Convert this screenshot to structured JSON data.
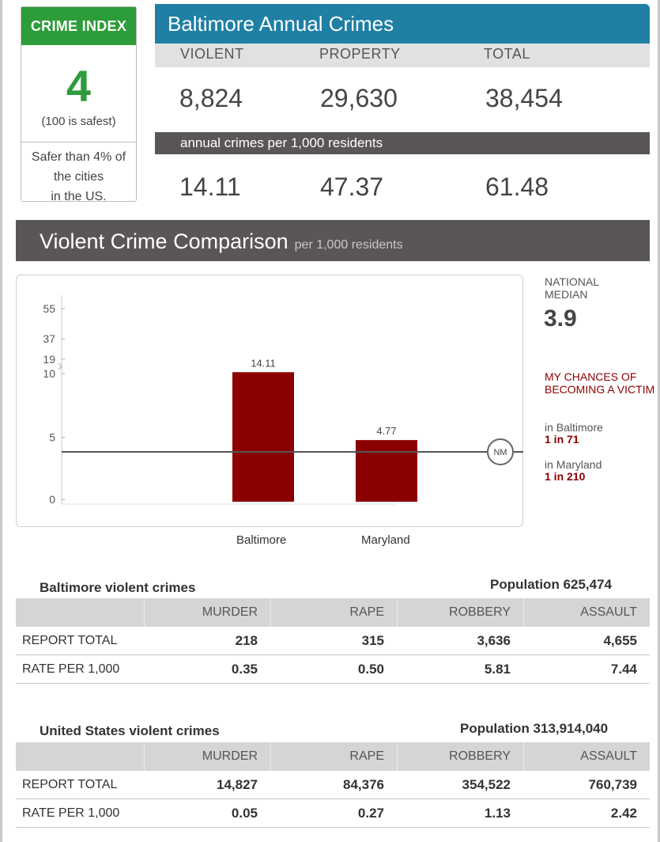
{
  "crime_index": {
    "heading": "CRIME INDEX",
    "value": "4",
    "note": "(100 is safest)",
    "footer_line1": "Safer than 4% of",
    "footer_line2": "the cities",
    "footer_line3": "in the US."
  },
  "annual": {
    "title": "Baltimore Annual Crimes",
    "labels": [
      "VIOLENT",
      "PROPERTY",
      "TOTAL"
    ],
    "totals": [
      "8,824",
      "29,630",
      "38,454"
    ],
    "per_label": "annual crimes per 1,000 residents",
    "rates": [
      "14.11",
      "47.37",
      "61.48"
    ]
  },
  "comparison": {
    "title": "Violent Crime Comparison",
    "subtitle": "per 1,000 residents",
    "national_label_1": "NATIONAL",
    "national_label_2": "MEDIAN",
    "national_value": "3.9",
    "nm_marker": "NM",
    "victim_title": "MY CHANCES OF BECOMING A VICTIM",
    "victim": [
      {
        "place": "in Baltimore",
        "odds": "1 in 71"
      },
      {
        "place": "in Maryland",
        "odds": "1 in 210"
      }
    ]
  },
  "chart_data": {
    "type": "bar",
    "categories": [
      "Baltimore",
      "Maryland"
    ],
    "values": [
      14.11,
      4.77
    ],
    "value_labels": [
      "14.11",
      "4.77"
    ],
    "reference_line": {
      "label": "NM",
      "value": 3.9
    },
    "yticks": [
      "55",
      "37",
      "19",
      "10",
      "5",
      "0"
    ],
    "axis_break": "between 10 and 19",
    "bar_color": "#8b0000",
    "title": "",
    "xlabel": "",
    "ylabel": ""
  },
  "tables": [
    {
      "title": "Baltimore violent crimes",
      "population": "Population 625,474",
      "columns": [
        "MURDER",
        "RAPE",
        "ROBBERY",
        "ASSAULT"
      ],
      "rows": [
        {
          "label": "REPORT TOTAL",
          "cells": [
            "218",
            "315",
            "3,636",
            "4,655"
          ]
        },
        {
          "label": "RATE PER 1,000",
          "cells": [
            "0.35",
            "0.50",
            "5.81",
            "7.44"
          ]
        }
      ]
    },
    {
      "title": "United States violent crimes",
      "population": "Population 313,914,040",
      "columns": [
        "MURDER",
        "RAPE",
        "ROBBERY",
        "ASSAULT"
      ],
      "rows": [
        {
          "label": "REPORT TOTAL",
          "cells": [
            "14,827",
            "84,376",
            "354,522",
            "760,739"
          ]
        },
        {
          "label": "RATE PER 1,000",
          "cells": [
            "0.05",
            "0.27",
            "1.13",
            "2.42"
          ]
        }
      ]
    }
  ],
  "colors": {
    "index_green": "#2d9c3a",
    "header_blue": "#1f7fa4",
    "dark_bar": "#5a5556",
    "victim_red": "#8b0000"
  }
}
